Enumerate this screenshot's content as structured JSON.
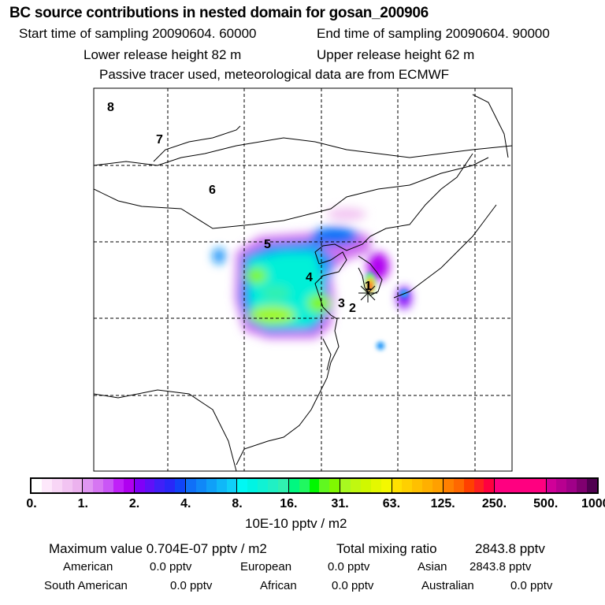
{
  "header": {
    "title": "BC  source contributions in nested domain for gosan_200906",
    "start_label": "Start time of sampling 20090604. 60000",
    "end_label": "End time of sampling 20090604. 90000",
    "lower_label": "Lower release height   82 m",
    "upper_label": "Upper release height   62 m",
    "tracer_label": "Passive tracer used, meteorological data are from ECMWF"
  },
  "map": {
    "labels": [
      "1",
      "2",
      "3",
      "4",
      "5",
      "6",
      "7",
      "8"
    ],
    "receptor_icon": "star-marker-icon"
  },
  "colorbar": {
    "ticks": [
      "0.",
      "1.",
      "2.",
      "4.",
      "8.",
      "16.",
      "31.",
      "63.",
      "125.",
      "250.",
      "500.",
      "1000."
    ],
    "unit": "10E-10 pptv / m2",
    "segments": [
      [
        "#ffffff",
        "#fde8fb",
        "#f8d6f6",
        "#f2c4f2",
        "#ecb2ee"
      ],
      [
        "#e096f2",
        "#d676f2",
        "#ca56f6",
        "#c020f8",
        "#b000f0"
      ],
      [
        "#8000f8",
        "#6010f8",
        "#4020f8",
        "#2828f8",
        "#1044f8"
      ],
      [
        "#1070f8",
        "#1088f8",
        "#10a0f8",
        "#10b8f8",
        "#10d0f8"
      ],
      [
        "#00f8f4",
        "#00f4e4",
        "#10f2d4",
        "#20f0c4",
        "#30f0b0"
      ],
      [
        "#00f880",
        "#20f860",
        "#00f800",
        "#60f820",
        "#80f800"
      ],
      [
        "#a8f820",
        "#c0f810",
        "#d0f800",
        "#e4f800",
        "#f4f800"
      ],
      [
        "#ffe000",
        "#ffd000",
        "#ffc000",
        "#ffb000",
        "#ffa000"
      ],
      [
        "#ff8000",
        "#ff6800",
        "#ff4000",
        "#ff2020",
        "#ff0040"
      ],
      [
        "#ff0080",
        "#ff0080",
        "#ff0080",
        "#ff0080",
        "#ff0080"
      ],
      [
        "#d00098",
        "#b80090",
        "#a00088",
        "#800070",
        "#500050"
      ]
    ]
  },
  "stats": {
    "max_label": "Maximum value  0.704E-07 pptv / m2",
    "total_label": "Total mixing ratio",
    "total_value": "2843.8 pptv",
    "american_label": "American",
    "american_value": "0.0 pptv",
    "european_label": "European",
    "european_value": "0.0 pptv",
    "asian_label": "Asian",
    "asian_value": "2843.8 pptv",
    "south_american_label": "South American",
    "south_american_value": "0.0 pptv",
    "african_label": "African",
    "african_value": "0.0 pptv",
    "australian_label": "Australian",
    "australian_value": "0.0 pptv"
  }
}
